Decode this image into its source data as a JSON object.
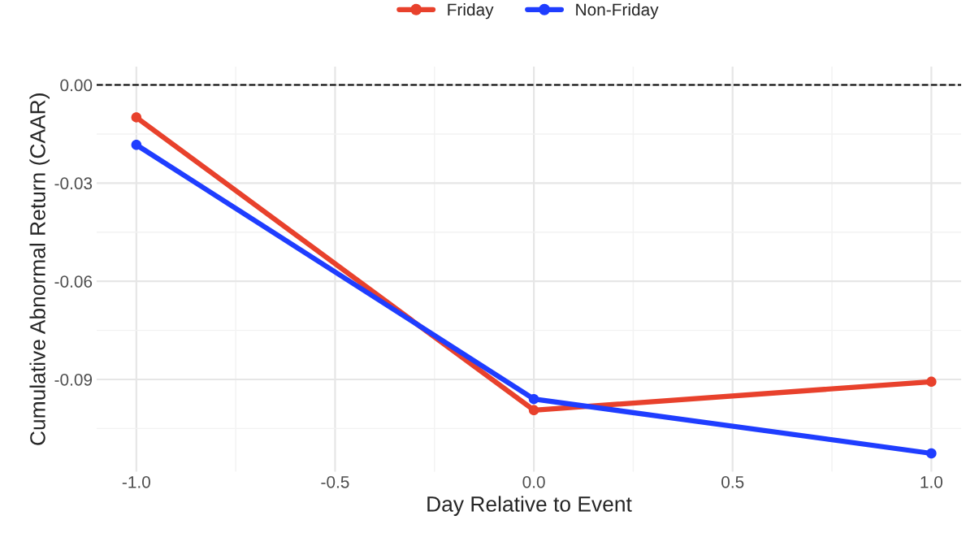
{
  "chart_data": {
    "type": "line",
    "xlabel": "Day Relative to Event",
    "ylabel": "Cumulative Abnormal Return (CAAR)",
    "x": [
      -1,
      0,
      1
    ],
    "series": [
      {
        "name": "Friday",
        "color": "#e8412c",
        "values": [
          -0.0099,
          -0.0994,
          -0.0907
        ]
      },
      {
        "name": "Non-Friday",
        "color": "#1f3dff",
        "values": [
          -0.0183,
          -0.096,
          -0.1126
        ]
      }
    ],
    "xlim": [
      -1.1,
      1.075
    ],
    "ylim": [
      -0.1182,
      0.0056
    ],
    "xticks": [
      {
        "value": -1,
        "label": "-1.0"
      },
      {
        "value": -0.5,
        "label": "-0.5"
      },
      {
        "value": 0,
        "label": "0.0"
      },
      {
        "value": 0.5,
        "label": "0.5"
      },
      {
        "value": 1,
        "label": "1.0"
      }
    ],
    "yticks": [
      {
        "value": -0.09,
        "label": "-0.09"
      },
      {
        "value": -0.06,
        "label": "-0.06"
      },
      {
        "value": -0.03,
        "label": "-0.03"
      },
      {
        "value": 0,
        "label": "0.00"
      }
    ],
    "ref_lines": [
      {
        "axis": "y",
        "value": 0,
        "color": "#000000",
        "line_style": "dashed"
      }
    ],
    "grid": true,
    "legend": "top",
    "marker": "circle",
    "line_style": "solid"
  }
}
